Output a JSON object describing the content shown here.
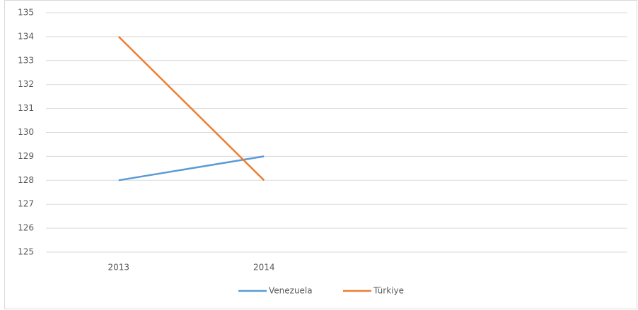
{
  "chart_data": {
    "type": "line",
    "categories": [
      "2013",
      "2014",
      null,
      null
    ],
    "series": [
      {
        "name": "Venezuela",
        "color": "#5b9bd5",
        "values": [
          128,
          129,
          null,
          null
        ]
      },
      {
        "name": "Türkiye",
        "color": "#ed7d31",
        "values": [
          134,
          128,
          null,
          null
        ]
      }
    ],
    "ylim": [
      125,
      135
    ],
    "yticks": [
      125,
      126,
      127,
      128,
      129,
      130,
      131,
      132,
      133,
      134,
      135
    ],
    "grid": true,
    "legend": "bottom"
  }
}
